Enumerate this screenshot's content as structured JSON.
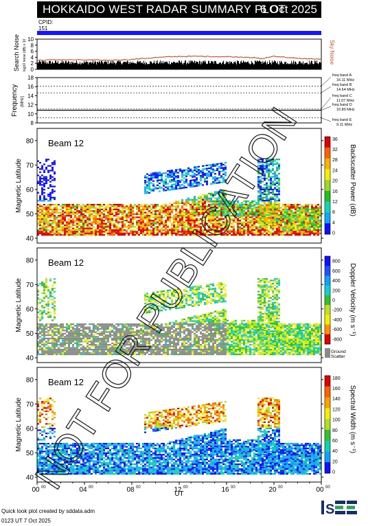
{
  "title": "HOKKAIDO WEST RADAR SUMMARY PLOT",
  "date": "6 Oct 2025",
  "cpid_label": "CPID:",
  "cpid_value": "151",
  "noise_panel": {
    "ylabel": "Search Noise",
    "ylabel2": "log10 noise (dB) x 10",
    "series_label": "Sky Noise",
    "yticks": [
      "0",
      "2",
      "4",
      "6",
      "8",
      "10"
    ]
  },
  "freq_panel": {
    "ylabel": "Frequency",
    "unit": "(MHz)",
    "yticks": [
      "8",
      "10",
      "12",
      "14",
      "16",
      "18"
    ],
    "bands": [
      {
        "name": "freq band A",
        "value": "16.11 MHz",
        "mhz": 16.11
      },
      {
        "name": "freq band B",
        "value": "14.64 MHz",
        "mhz": 14.64
      },
      {
        "name": "freq band C",
        "value": "11.07 MHz",
        "mhz": 11.07
      },
      {
        "name": "freq band D",
        "value": "10.80 MHz",
        "mhz": 10.8
      },
      {
        "name": "freq band E",
        "value": "9.11 MHz",
        "mhz": 9.11
      }
    ]
  },
  "panels": [
    {
      "beam": "Beam 12",
      "ylabel": "Magnetic Latitude",
      "colorbar_label": "Backscatter Power (dB)",
      "cticks": [
        "0",
        "4",
        "8",
        "12",
        "16",
        "20",
        "24",
        "28",
        "32",
        "36"
      ]
    },
    {
      "beam": "Beam 12",
      "ylabel": "Magnetic Latitude",
      "colorbar_label": "Doppler Velocity (m s⁻¹)",
      "cticks": [
        "800",
        "600",
        "400",
        "200",
        "0",
        "-200",
        "-400",
        "-600",
        "-800"
      ],
      "ground_label": "Ground",
      "ground_label2": "Scatter"
    },
    {
      "beam": "Beam 12",
      "ylabel": "Magnetic Latitude",
      "colorbar_label": "Spectral Width (m s⁻¹)",
      "cticks": [
        "0",
        "20",
        "40",
        "60",
        "80",
        "100",
        "120",
        "140",
        "160",
        "180"
      ]
    }
  ],
  "lat_ticks": [
    "40",
    "50",
    "60",
    "70",
    "80"
  ],
  "xaxis": {
    "label": "UT",
    "ticks": [
      "00",
      "04",
      "08",
      "12",
      "16",
      "20",
      "00"
    ],
    "tick_sup": "00"
  },
  "watermark": "NOT FOR PUBLICATION",
  "footer": {
    "line1": "Quick look plot created by sddata.adm",
    "line2": "0123 UT  7 Oct 2025"
  },
  "logo": "ISEE",
  "colors": {
    "noise": "#d9532c",
    "title_bg": "#000000",
    "cpid_bar": "#1515ff",
    "ground": "#8a8a8a"
  },
  "chart_data": [
    {
      "type": "line",
      "title": "Search Noise",
      "x_range_ut": [
        0,
        24
      ],
      "ylim": [
        0,
        10
      ],
      "series": [
        {
          "name": "Sky Noise",
          "x": [
            0,
            2,
            4,
            6,
            8,
            10,
            12,
            14,
            16,
            18,
            19,
            20,
            22,
            24
          ],
          "y": [
            3.0,
            3.2,
            3.1,
            3.0,
            3.3,
            3.9,
            4.3,
            4.3,
            4.2,
            4.0,
            3.5,
            4.4,
            3.6,
            3.4
          ]
        }
      ]
    },
    {
      "type": "line",
      "title": "Frequency",
      "x_range_ut": [
        0,
        24
      ],
      "ylim": [
        8,
        18
      ],
      "series": [
        {
          "name": "Frequency",
          "x": [
            0,
            24
          ],
          "y": [
            10.8,
            10.8
          ]
        }
      ]
    },
    {
      "type": "heatmap",
      "title": "Backscatter Power",
      "x_range_ut": [
        0,
        24
      ],
      "ylim": [
        38,
        85
      ],
      "clim": [
        0,
        36
      ]
    },
    {
      "type": "heatmap",
      "title": "Doppler Velocity",
      "x_range_ut": [
        0,
        24
      ],
      "ylim": [
        38,
        85
      ],
      "clim": [
        -800,
        800
      ]
    },
    {
      "type": "heatmap",
      "title": "Spectral Width",
      "x_range_ut": [
        0,
        24
      ],
      "ylim": [
        38,
        85
      ],
      "clim": [
        0,
        180
      ]
    }
  ]
}
